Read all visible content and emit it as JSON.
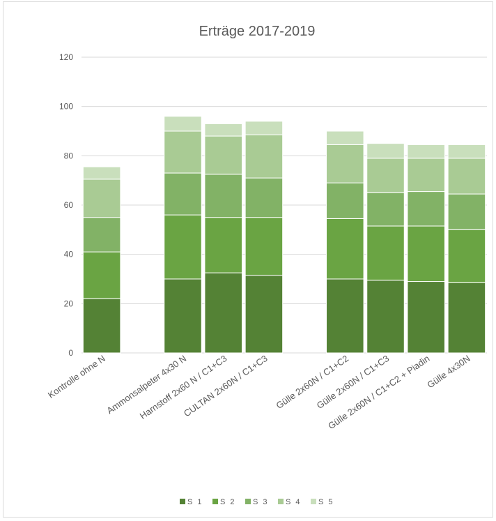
{
  "chart_data": {
    "type": "bar",
    "stacked": true,
    "title": "Erträge 2017-2019",
    "xlabel": "",
    "ylabel": "",
    "ylim": [
      0,
      120
    ],
    "yticks": [
      0,
      20,
      40,
      60,
      80,
      100,
      120
    ],
    "grid": true,
    "legend": "bottom",
    "categories": [
      "Kontrolle ohne N",
      "",
      "Ammonsalpeter 4x30 N",
      "Harnstoff 2x60 N / C1+C3",
      "CULTAN 2x60N / C1+C3",
      "",
      "Gülle 2x60N / C1+C2",
      "Gülle 2x60N / C1+C3",
      "Gülle 2x60N / C1+C2 + Piadin",
      "Gülle 4x30N"
    ],
    "series": [
      {
        "name": "S 1",
        "color": "#548235",
        "values": [
          22,
          null,
          30,
          32.5,
          31.5,
          null,
          30,
          29.5,
          29,
          28.5
        ]
      },
      {
        "name": "S 2",
        "color": "#6aa443",
        "values": [
          19,
          null,
          26,
          22.5,
          23.5,
          null,
          24.5,
          22,
          22.5,
          21.5
        ]
      },
      {
        "name": "S 3",
        "color": "#82b266",
        "values": [
          14,
          null,
          17,
          17.5,
          16,
          null,
          14.5,
          13.5,
          14,
          14.5
        ]
      },
      {
        "name": "S 4",
        "color": "#a9cb94",
        "values": [
          15.5,
          null,
          17,
          15.5,
          17.5,
          null,
          15.5,
          14,
          13.5,
          14.5
        ]
      },
      {
        "name": "S 5",
        "color": "#c9dfbc",
        "values": [
          5,
          null,
          6,
          5,
          5.5,
          null,
          5.5,
          6,
          5.5,
          5.5
        ]
      }
    ]
  }
}
